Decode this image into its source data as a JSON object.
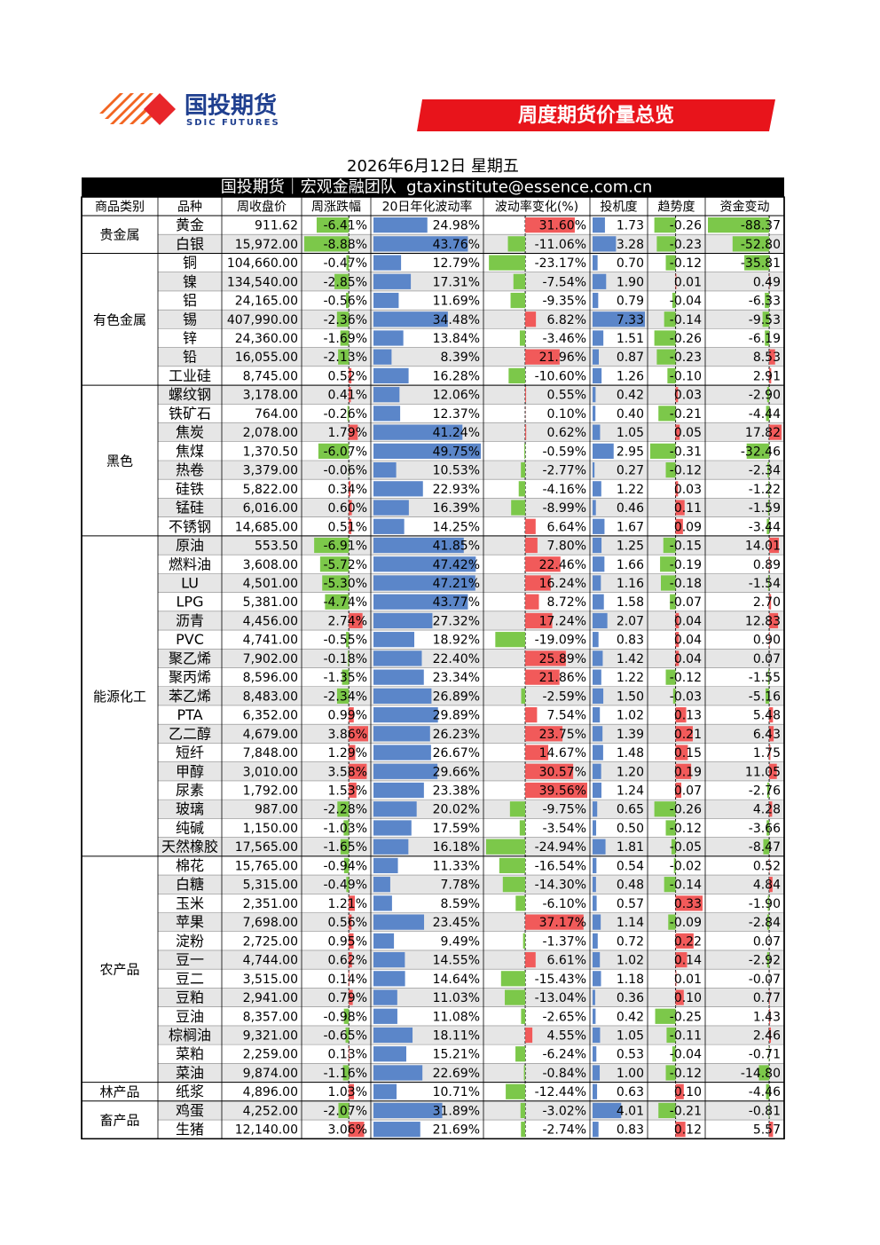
{
  "header": {
    "logo_cn": "国投期货",
    "logo_en": "SDIC FUTURES",
    "banner": "周度期货价量总览",
    "date": "2026年6月12日 星期五",
    "subtitle": "国投期货｜宏观金融团队  gtaxinstitute@essence.com.cn"
  },
  "table": {
    "columns": [
      "商品类别",
      "品种",
      "周收盘价",
      "周涨跌幅",
      "20日年化波动率",
      "波动率变化(%)",
      "投机度",
      "趋势度",
      "资金变动"
    ],
    "groups": [
      {
        "category": "贵金属",
        "rows": [
          [
            "黄金",
            "911.62",
            "-6.41%",
            "24.98%",
            "31.60%",
            "1.73",
            "-0.26",
            "-88.37"
          ],
          [
            "白银",
            "15,972.00",
            "-8.88%",
            "43.76%",
            "-11.06%",
            "3.28",
            "-0.23",
            "-52.80"
          ]
        ]
      },
      {
        "category": "有色金属",
        "rows": [
          [
            "铜",
            "104,660.00",
            "-0.47%",
            "12.79%",
            "-23.17%",
            "0.70",
            "-0.12",
            "-35.81"
          ],
          [
            "镍",
            "134,540.00",
            "-2.85%",
            "17.31%",
            "-7.54%",
            "1.90",
            "0.01",
            "0.49"
          ],
          [
            "铝",
            "24,165.00",
            "-0.56%",
            "11.69%",
            "-9.35%",
            "0.79",
            "-0.04",
            "-6.33"
          ],
          [
            "锡",
            "407,990.00",
            "-2.36%",
            "34.48%",
            "6.82%",
            "7.33",
            "-0.14",
            "-9.53"
          ],
          [
            "锌",
            "24,360.00",
            "-1.69%",
            "13.84%",
            "-3.46%",
            "1.51",
            "-0.26",
            "-6.19"
          ],
          [
            "铅",
            "16,055.00",
            "-2.13%",
            "8.39%",
            "21.96%",
            "0.87",
            "-0.23",
            "8.53"
          ],
          [
            "工业硅",
            "8,745.00",
            "0.52%",
            "16.28%",
            "-10.60%",
            "1.26",
            "-0.10",
            "2.91"
          ]
        ]
      },
      {
        "category": "黑色",
        "rows": [
          [
            "螺纹钢",
            "3,178.00",
            "0.41%",
            "12.06%",
            "0.55%",
            "0.42",
            "0.03",
            "-2.90"
          ],
          [
            "铁矿石",
            "764.00",
            "-0.26%",
            "12.37%",
            "0.10%",
            "0.40",
            "-0.21",
            "-4.44"
          ],
          [
            "焦炭",
            "2,078.00",
            "1.79%",
            "41.24%",
            "0.62%",
            "1.05",
            "0.05",
            "17.82"
          ],
          [
            "焦煤",
            "1,370.50",
            "-6.07%",
            "49.75%",
            "-0.59%",
            "2.95",
            "-0.31",
            "-32.46"
          ],
          [
            "热卷",
            "3,379.00",
            "-0.06%",
            "10.53%",
            "-2.77%",
            "0.27",
            "-0.12",
            "-2.34"
          ],
          [
            "硅铁",
            "5,822.00",
            "0.34%",
            "22.93%",
            "-4.16%",
            "1.22",
            "0.03",
            "-1.22"
          ],
          [
            "锰硅",
            "6,016.00",
            "0.60%",
            "16.39%",
            "-8.99%",
            "0.46",
            "0.11",
            "-1.59"
          ],
          [
            "不锈钢",
            "14,685.00",
            "0.51%",
            "14.25%",
            "6.64%",
            "1.67",
            "0.09",
            "-3.44"
          ]
        ]
      },
      {
        "category": "能源化工",
        "rows": [
          [
            "原油",
            "553.50",
            "-6.91%",
            "41.85%",
            "7.80%",
            "1.25",
            "-0.15",
            "14.01"
          ],
          [
            "燃料油",
            "3,608.00",
            "-5.72%",
            "47.42%",
            "22.46%",
            "1.66",
            "-0.19",
            "0.89"
          ],
          [
            "LU",
            "4,501.00",
            "-5.30%",
            "47.21%",
            "16.24%",
            "1.16",
            "-0.18",
            "-1.54"
          ],
          [
            "LPG",
            "5,381.00",
            "-4.74%",
            "43.77%",
            "8.72%",
            "1.58",
            "-0.07",
            "2.70"
          ],
          [
            "沥青",
            "4,456.00",
            "2.74%",
            "27.32%",
            "17.24%",
            "2.07",
            "0.04",
            "12.83"
          ],
          [
            "PVC",
            "4,741.00",
            "-0.55%",
            "18.92%",
            "-19.09%",
            "0.83",
            "0.04",
            "0.90"
          ],
          [
            "聚乙烯",
            "7,902.00",
            "-0.18%",
            "22.40%",
            "25.89%",
            "1.42",
            "0.04",
            "0.07"
          ],
          [
            "聚丙烯",
            "8,596.00",
            "-1.35%",
            "23.34%",
            "21.86%",
            "1.22",
            "-0.12",
            "-1.55"
          ],
          [
            "苯乙烯",
            "8,483.00",
            "-2.34%",
            "26.89%",
            "-2.59%",
            "1.50",
            "-0.03",
            "-5.16"
          ],
          [
            "PTA",
            "6,352.00",
            "0.99%",
            "29.89%",
            "7.54%",
            "1.02",
            "0.13",
            "5.48"
          ],
          [
            "乙二醇",
            "4,679.00",
            "3.86%",
            "26.23%",
            "23.75%",
            "1.39",
            "0.21",
            "6.43"
          ],
          [
            "短纤",
            "7,848.00",
            "1.29%",
            "26.67%",
            "14.67%",
            "1.48",
            "0.15",
            "1.75"
          ],
          [
            "甲醇",
            "3,010.00",
            "3.58%",
            "29.66%",
            "30.57%",
            "1.20",
            "0.19",
            "11.05"
          ],
          [
            "尿素",
            "1,792.00",
            "1.53%",
            "23.38%",
            "39.56%",
            "1.24",
            "0.07",
            "-2.76"
          ],
          [
            "玻璃",
            "987.00",
            "-2.28%",
            "20.02%",
            "-9.75%",
            "0.65",
            "-0.26",
            "4.28"
          ],
          [
            "纯碱",
            "1,150.00",
            "-1.03%",
            "17.59%",
            "-3.54%",
            "0.50",
            "-0.12",
            "-3.66"
          ],
          [
            "天然橡胶",
            "17,565.00",
            "-1.65%",
            "16.18%",
            "-24.94%",
            "1.81",
            "-0.05",
            "-8.47"
          ]
        ]
      },
      {
        "category": "农产品",
        "rows": [
          [
            "棉花",
            "15,765.00",
            "-0.94%",
            "11.33%",
            "-16.54%",
            "0.54",
            "-0.02",
            "0.52"
          ],
          [
            "白糖",
            "5,315.00",
            "-0.49%",
            "7.78%",
            "-14.30%",
            "0.48",
            "-0.14",
            "4.84"
          ],
          [
            "玉米",
            "2,351.00",
            "1.21%",
            "8.59%",
            "-6.10%",
            "0.57",
            "0.33",
            "-1.90"
          ],
          [
            "苹果",
            "7,698.00",
            "0.56%",
            "23.45%",
            "37.17%",
            "1.14",
            "-0.09",
            "-2.84"
          ],
          [
            "淀粉",
            "2,725.00",
            "0.95%",
            "9.49%",
            "-1.37%",
            "0.72",
            "0.22",
            "0.07"
          ],
          [
            "豆一",
            "4,744.00",
            "0.62%",
            "14.55%",
            "6.61%",
            "1.02",
            "0.14",
            "-2.92"
          ],
          [
            "豆二",
            "3,515.00",
            "0.14%",
            "14.64%",
            "-15.43%",
            "1.18",
            "0.01",
            "-0.07"
          ],
          [
            "豆粕",
            "2,941.00",
            "0.79%",
            "11.03%",
            "-13.04%",
            "0.36",
            "0.10",
            "0.77"
          ],
          [
            "豆油",
            "8,357.00",
            "-0.98%",
            "11.08%",
            "-2.65%",
            "0.42",
            "-0.25",
            "1.43"
          ],
          [
            "棕榈油",
            "9,321.00",
            "-0.65%",
            "18.11%",
            "4.55%",
            "1.05",
            "-0.11",
            "2.46"
          ],
          [
            "菜粕",
            "2,259.00",
            "0.13%",
            "15.21%",
            "-6.24%",
            "0.53",
            "-0.04",
            "-0.71"
          ],
          [
            "菜油",
            "9,874.00",
            "-1.16%",
            "22.69%",
            "-0.84%",
            "1.00",
            "-0.12",
            "-14.80"
          ]
        ]
      },
      {
        "category": "林产品",
        "rows": [
          [
            "纸浆",
            "4,896.00",
            "1.03%",
            "10.71%",
            "-12.44%",
            "0.63",
            "0.10",
            "-4.46"
          ]
        ]
      },
      {
        "category": "畜产品",
        "rows": [
          [
            "鸡蛋",
            "4,252.00",
            "-2.07%",
            "31.89%",
            "-3.02%",
            "4.01",
            "-0.21",
            "-0.81"
          ],
          [
            "生猪",
            "12,140.00",
            "3.06%",
            "21.69%",
            "-2.74%",
            "0.83",
            "0.12",
            "5.57"
          ]
        ]
      }
    ]
  }
}
